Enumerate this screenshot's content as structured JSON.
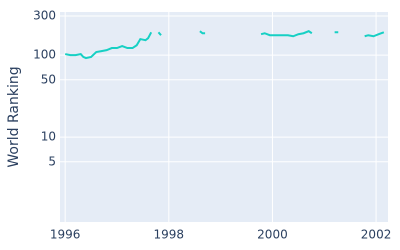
{
  "chart_data": {
    "type": "line",
    "y_label": "World Ranking",
    "log_y": true,
    "grid": true,
    "x": [
      1996.0,
      1996.1,
      1996.2,
      1996.3,
      1996.35,
      1996.4,
      1996.5,
      1996.6,
      1996.7,
      1996.8,
      1996.9,
      1997.0,
      1997.1,
      1997.2,
      1997.3,
      1997.38,
      1997.45,
      1997.55,
      1997.6,
      1997.66,
      null,
      1997.8,
      1997.85,
      null,
      1998.6,
      1998.65,
      1998.7,
      null,
      1999.78,
      1999.85,
      1999.95,
      2000.1,
      2000.3,
      2000.4,
      2000.5,
      2000.6,
      2000.7,
      2000.76,
      null,
      2001.2,
      2001.27,
      null,
      2001.78,
      2001.85,
      2001.95,
      2002.05,
      2002.15
    ],
    "series": [
      {
        "name": "World Ranking",
        "color": "#17d0c4",
        "values": [
          103,
          100,
          100,
          103,
          95,
          92,
          95,
          109,
          112,
          115,
          122,
          122,
          129,
          122,
          122,
          132,
          157,
          152,
          161,
          190,
          null,
          190,
          175,
          null,
          196,
          185,
          185,
          null,
          180,
          185,
          175,
          175,
          175,
          170,
          180,
          185,
          196,
          185,
          null,
          190,
          190,
          null,
          170,
          175,
          170,
          180,
          190
        ]
      }
    ],
    "xlim": [
      1995.9,
      2002.23
    ],
    "xticks": [
      1996,
      1998,
      2000,
      2002
    ],
    "ylim": [
      0.92,
      336
    ],
    "yticks": [
      5,
      10,
      50,
      100,
      300
    ]
  }
}
